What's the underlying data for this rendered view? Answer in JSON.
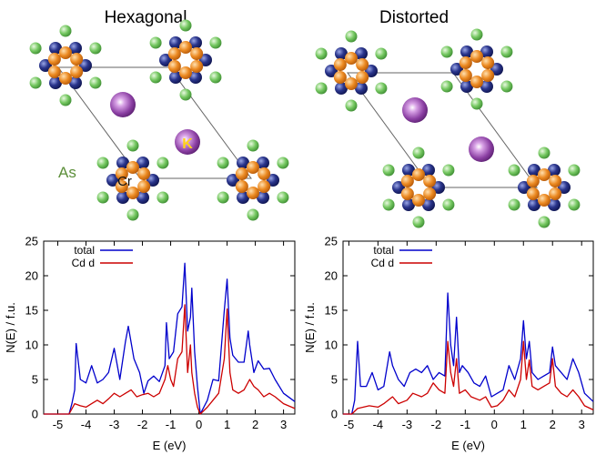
{
  "figure": {
    "panels": [
      {
        "title": "Hexagonal",
        "labels": {
          "k": "K",
          "cr": "Cr",
          "as": "As"
        }
      },
      {
        "title": "Distorted"
      }
    ]
  },
  "colors": {
    "total": "#0000cc",
    "cd_d": "#cc0000",
    "as_atom": "#6cc35a",
    "cr_atom": "#1f2a7a",
    "orange_atom": "#e8841d",
    "k_atom": "#8b3fa3",
    "cell_line": "#555555",
    "distort_bond": "#20b3c9"
  },
  "chart_data": [
    {
      "type": "line",
      "xlabel": "E (eV)",
      "ylabel": "N(E) / f.u.",
      "xlim": [
        -5.5,
        3.4
      ],
      "ylim": [
        0,
        25
      ],
      "x_ticks": [
        "-5",
        "-4",
        "-3",
        "-2",
        "-1",
        "0",
        "1",
        "2",
        "3"
      ],
      "y_ticks": [
        "0",
        "5",
        "10",
        "15",
        "20",
        "25"
      ],
      "legend_position": "top-left",
      "series": [
        {
          "name": "total",
          "points": [
            [
              -5.5,
              0
            ],
            [
              -4.6,
              0
            ],
            [
              -4.5,
              1.5
            ],
            [
              -4.4,
              3.5
            ],
            [
              -4.35,
              10.2
            ],
            [
              -4.2,
              5
            ],
            [
              -4.0,
              4.5
            ],
            [
              -3.8,
              7
            ],
            [
              -3.6,
              4.5
            ],
            [
              -3.4,
              5
            ],
            [
              -3.2,
              6
            ],
            [
              -3.0,
              9.5
            ],
            [
              -2.8,
              5
            ],
            [
              -2.6,
              10.5
            ],
            [
              -2.5,
              12.7
            ],
            [
              -2.3,
              8
            ],
            [
              -2.1,
              6
            ],
            [
              -1.95,
              3
            ],
            [
              -1.8,
              4.8
            ],
            [
              -1.6,
              5.5
            ],
            [
              -1.4,
              4.7
            ],
            [
              -1.2,
              7
            ],
            [
              -1.15,
              13.2
            ],
            [
              -1.05,
              8
            ],
            [
              -0.9,
              9
            ],
            [
              -0.75,
              14.5
            ],
            [
              -0.6,
              15.5
            ],
            [
              -0.5,
              21.8
            ],
            [
              -0.4,
              12
            ],
            [
              -0.3,
              14
            ],
            [
              -0.25,
              18.2
            ],
            [
              -0.15,
              9
            ],
            [
              -0.05,
              4
            ],
            [
              0.05,
              0
            ],
            [
              0.3,
              2
            ],
            [
              0.5,
              5
            ],
            [
              0.7,
              4.8
            ],
            [
              0.9,
              15
            ],
            [
              1.0,
              19.5
            ],
            [
              1.1,
              11
            ],
            [
              1.2,
              8.5
            ],
            [
              1.4,
              7.5
            ],
            [
              1.6,
              7.5
            ],
            [
              1.75,
              12
            ],
            [
              1.8,
              10
            ],
            [
              1.95,
              6
            ],
            [
              2.1,
              7.7
            ],
            [
              2.3,
              6.5
            ],
            [
              2.5,
              6.6
            ],
            [
              2.7,
              5
            ],
            [
              3.0,
              3
            ],
            [
              3.4,
              1.8
            ]
          ]
        },
        {
          "name": "Cd d",
          "points": [
            [
              -5.5,
              0
            ],
            [
              -4.6,
              0
            ],
            [
              -4.4,
              1.5
            ],
            [
              -4.2,
              1.2
            ],
            [
              -4.0,
              1.0
            ],
            [
              -3.8,
              1.5
            ],
            [
              -3.6,
              2
            ],
            [
              -3.4,
              1.5
            ],
            [
              -3.2,
              2.2
            ],
            [
              -3.0,
              3
            ],
            [
              -2.8,
              2.5
            ],
            [
              -2.6,
              3
            ],
            [
              -2.4,
              3.5
            ],
            [
              -2.2,
              2.5
            ],
            [
              -2.0,
              2.8
            ],
            [
              -1.8,
              3
            ],
            [
              -1.6,
              2.5
            ],
            [
              -1.4,
              3
            ],
            [
              -1.2,
              5
            ],
            [
              -1.1,
              7
            ],
            [
              -1.0,
              5
            ],
            [
              -0.9,
              4
            ],
            [
              -0.75,
              8
            ],
            [
              -0.6,
              9
            ],
            [
              -0.5,
              15.8
            ],
            [
              -0.4,
              6
            ],
            [
              -0.3,
              10
            ],
            [
              -0.25,
              6
            ],
            [
              -0.15,
              3
            ],
            [
              -0.05,
              1
            ],
            [
              0.05,
              0
            ],
            [
              0.3,
              1
            ],
            [
              0.5,
              2
            ],
            [
              0.7,
              3
            ],
            [
              0.9,
              8
            ],
            [
              1.0,
              15.2
            ],
            [
              1.1,
              6
            ],
            [
              1.2,
              3.5
            ],
            [
              1.4,
              3
            ],
            [
              1.6,
              3.5
            ],
            [
              1.8,
              5
            ],
            [
              1.95,
              4
            ],
            [
              2.1,
              3.5
            ],
            [
              2.3,
              2.5
            ],
            [
              2.5,
              3
            ],
            [
              2.7,
              2.5
            ],
            [
              3.0,
              1.5
            ],
            [
              3.4,
              0.8
            ]
          ]
        }
      ]
    },
    {
      "type": "line",
      "xlabel": "E (eV)",
      "ylabel": "N(E) / f.u.",
      "xlim": [
        -5.2,
        3.4
      ],
      "ylim": [
        0,
        25
      ],
      "x_ticks": [
        "-5",
        "-4",
        "-3",
        "-2",
        "-1",
        "0",
        "1",
        "2",
        "3"
      ],
      "y_ticks": [
        "0",
        "5",
        "10",
        "15",
        "20",
        "25"
      ],
      "legend_position": "top-left",
      "series": [
        {
          "name": "total",
          "points": [
            [
              -5.2,
              0
            ],
            [
              -4.9,
              0
            ],
            [
              -4.8,
              2
            ],
            [
              -4.7,
              10.5
            ],
            [
              -4.6,
              4
            ],
            [
              -4.4,
              4
            ],
            [
              -4.2,
              6
            ],
            [
              -4.0,
              3.5
            ],
            [
              -3.8,
              4
            ],
            [
              -3.6,
              9
            ],
            [
              -3.5,
              7
            ],
            [
              -3.3,
              5
            ],
            [
              -3.1,
              4
            ],
            [
              -2.9,
              6
            ],
            [
              -2.7,
              6.5
            ],
            [
              -2.5,
              6
            ],
            [
              -2.3,
              7
            ],
            [
              -2.1,
              5
            ],
            [
              -1.9,
              6
            ],
            [
              -1.7,
              5.5
            ],
            [
              -1.6,
              17.5
            ],
            [
              -1.5,
              10
            ],
            [
              -1.4,
              7
            ],
            [
              -1.3,
              14
            ],
            [
              -1.2,
              6
            ],
            [
              -1.1,
              7
            ],
            [
              -0.9,
              6
            ],
            [
              -0.7,
              4.5
            ],
            [
              -0.5,
              4
            ],
            [
              -0.3,
              5.5
            ],
            [
              -0.1,
              2.5
            ],
            [
              0.1,
              3
            ],
            [
              0.3,
              3.5
            ],
            [
              0.5,
              7
            ],
            [
              0.7,
              5
            ],
            [
              0.9,
              8
            ],
            [
              1.0,
              13.5
            ],
            [
              1.1,
              8
            ],
            [
              1.2,
              10.5
            ],
            [
              1.3,
              6
            ],
            [
              1.5,
              5
            ],
            [
              1.7,
              5.5
            ],
            [
              1.9,
              6
            ],
            [
              2.0,
              9.7
            ],
            [
              2.1,
              7
            ],
            [
              2.3,
              6
            ],
            [
              2.5,
              5
            ],
            [
              2.7,
              8
            ],
            [
              2.9,
              6
            ],
            [
              3.1,
              3
            ],
            [
              3.4,
              1.8
            ]
          ]
        },
        {
          "name": "Cd d",
          "points": [
            [
              -5.2,
              0
            ],
            [
              -4.9,
              0
            ],
            [
              -4.7,
              0.8
            ],
            [
              -4.5,
              1.0
            ],
            [
              -4.3,
              1.2
            ],
            [
              -4.0,
              1.0
            ],
            [
              -3.8,
              1.5
            ],
            [
              -3.5,
              2.5
            ],
            [
              -3.3,
              1.5
            ],
            [
              -3.0,
              2
            ],
            [
              -2.8,
              3
            ],
            [
              -2.5,
              2.5
            ],
            [
              -2.3,
              3
            ],
            [
              -2.1,
              4.5
            ],
            [
              -1.9,
              3.5
            ],
            [
              -1.7,
              3
            ],
            [
              -1.6,
              10.5
            ],
            [
              -1.5,
              6
            ],
            [
              -1.4,
              4
            ],
            [
              -1.3,
              8
            ],
            [
              -1.2,
              3
            ],
            [
              -1.0,
              3.5
            ],
            [
              -0.8,
              2.5
            ],
            [
              -0.5,
              2
            ],
            [
              -0.3,
              2.5
            ],
            [
              -0.1,
              1
            ],
            [
              0.1,
              1.2
            ],
            [
              0.3,
              2
            ],
            [
              0.5,
              3.5
            ],
            [
              0.7,
              2.5
            ],
            [
              0.9,
              5
            ],
            [
              1.0,
              10.5
            ],
            [
              1.1,
              5
            ],
            [
              1.2,
              7.8
            ],
            [
              1.3,
              4
            ],
            [
              1.5,
              3.5
            ],
            [
              1.7,
              4
            ],
            [
              1.9,
              4.5
            ],
            [
              2.0,
              8
            ],
            [
              2.1,
              4
            ],
            [
              2.3,
              3
            ],
            [
              2.5,
              2.5
            ],
            [
              2.7,
              3.5
            ],
            [
              2.9,
              2.5
            ],
            [
              3.1,
              1.2
            ],
            [
              3.4,
              0.6
            ]
          ]
        }
      ]
    }
  ]
}
